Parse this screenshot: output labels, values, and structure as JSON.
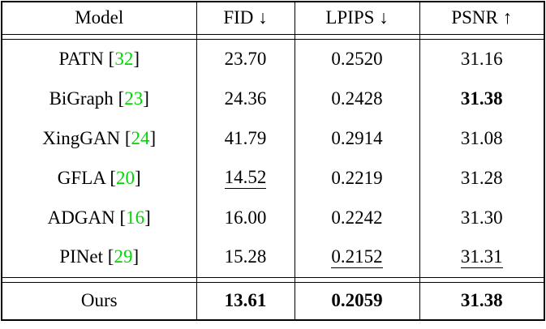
{
  "table": {
    "columns": [
      {
        "label": "Model"
      },
      {
        "label": "FID ↓"
      },
      {
        "label": "LPIPS ↓"
      },
      {
        "label": "PSNR ↑"
      }
    ],
    "brackets": {
      "open": "[",
      "close": "]"
    },
    "rows": [
      {
        "model": {
          "name": "PATN",
          "ref": "32"
        },
        "fid": {
          "text": "23.70"
        },
        "lpips": {
          "text": "0.2520"
        },
        "psnr": {
          "text": "31.16"
        }
      },
      {
        "model": {
          "name": "BiGraph",
          "ref": "23"
        },
        "fid": {
          "text": "24.36"
        },
        "lpips": {
          "text": "0.2428"
        },
        "psnr": {
          "text": "31.38",
          "bold": true
        }
      },
      {
        "model": {
          "name": "XingGAN",
          "ref": "24"
        },
        "fid": {
          "text": "41.79"
        },
        "lpips": {
          "text": "0.2914"
        },
        "psnr": {
          "text": "31.08"
        }
      },
      {
        "model": {
          "name": "GFLA",
          "ref": "20"
        },
        "fid": {
          "text": "14.52",
          "underline": true
        },
        "lpips": {
          "text": "0.2219"
        },
        "psnr": {
          "text": "31.28"
        }
      },
      {
        "model": {
          "name": "ADGAN",
          "ref": "16"
        },
        "fid": {
          "text": "16.00"
        },
        "lpips": {
          "text": "0.2242"
        },
        "psnr": {
          "text": "31.30"
        }
      },
      {
        "model": {
          "name": "PINet",
          "ref": "29"
        },
        "fid": {
          "text": "15.28"
        },
        "lpips": {
          "text": "0.2152",
          "underline": true
        },
        "psnr": {
          "text": "31.31",
          "underline": true
        }
      },
      {
        "model": {
          "name": "Ours",
          "ref": null
        },
        "separator_above": true,
        "fid": {
          "text": "13.61",
          "bold": true
        },
        "lpips": {
          "text": "0.2059",
          "bold": true
        },
        "psnr": {
          "text": "31.38",
          "bold": true
        }
      }
    ]
  },
  "colors": {
    "reference_green": "#00d800",
    "text": "#000000",
    "border": "#000000",
    "background": "#ffffff"
  }
}
